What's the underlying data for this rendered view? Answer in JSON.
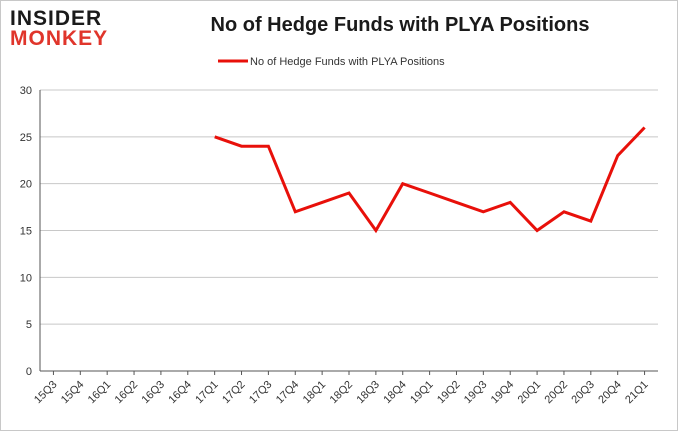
{
  "logo": {
    "line1": "INSIDER",
    "line2": "MONKEY"
  },
  "colors": {
    "series": "#e8100a",
    "grid": "#c8c8c8",
    "axis": "#555555"
  },
  "chart_data": {
    "type": "line",
    "title": "No of Hedge Funds with PLYA Positions",
    "xlabel": "",
    "ylabel": "",
    "legend": "top-center",
    "grid": true,
    "ylim": [
      0,
      30
    ],
    "yticks": [
      0,
      5,
      10,
      15,
      20,
      25,
      30
    ],
    "categories": [
      "15Q3",
      "15Q4",
      "16Q1",
      "16Q2",
      "16Q3",
      "16Q4",
      "17Q1",
      "17Q2",
      "17Q3",
      "17Q4",
      "18Q1",
      "18Q2",
      "18Q3",
      "18Q4",
      "19Q1",
      "19Q2",
      "19Q3",
      "19Q4",
      "20Q1",
      "20Q2",
      "20Q3",
      "20Q4",
      "21Q1"
    ],
    "series": [
      {
        "name": "No of Hedge Funds with PLYA Positions",
        "values": [
          null,
          null,
          null,
          null,
          null,
          null,
          25,
          24,
          24,
          17,
          18,
          19,
          15,
          20,
          19,
          18,
          17,
          18,
          15,
          17,
          16,
          23,
          26
        ]
      }
    ]
  }
}
